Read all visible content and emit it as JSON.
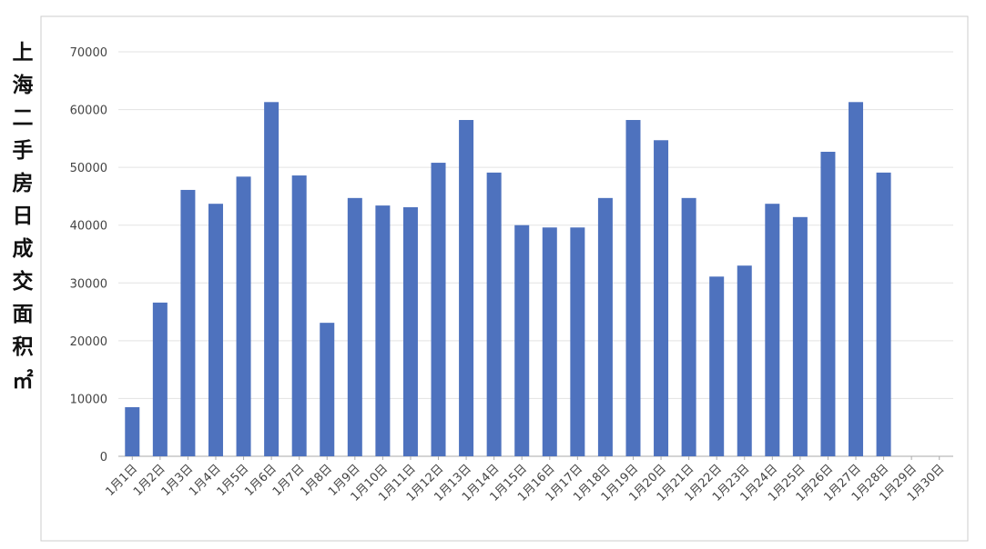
{
  "chart_data": {
    "type": "bar",
    "y_label": "上海二手房日成交面积㎡",
    "categories": [
      "1月1日",
      "1月2日",
      "1月3日",
      "1月4日",
      "1月5日",
      "1月6日",
      "1月7日",
      "1月8日",
      "1月9日",
      "1月10日",
      "1月11日",
      "1月12日",
      "1月13日",
      "1月14日",
      "1月15日",
      "1月16日",
      "1月17日",
      "1月18日",
      "1月19日",
      "1月20日",
      "1月21日",
      "1月22日",
      "1月23日",
      "1月24日",
      "1月25日",
      "1月26日",
      "1月27日",
      "1月28日",
      "1月29日",
      "1月30日"
    ],
    "values": [
      8500,
      26600,
      46100,
      43700,
      48400,
      61300,
      48600,
      23100,
      44700,
      43400,
      43100,
      50800,
      58200,
      49100,
      40000,
      39600,
      39600,
      44700,
      58200,
      54700,
      44700,
      31100,
      33000,
      43700,
      41400,
      52700,
      61300,
      49100,
      null,
      null
    ],
    "color": "#4e72be",
    "ylim": [
      0,
      70000
    ],
    "yticks": [
      0,
      10000,
      20000,
      30000,
      40000,
      50000,
      60000,
      70000
    ],
    "grid": true
  }
}
